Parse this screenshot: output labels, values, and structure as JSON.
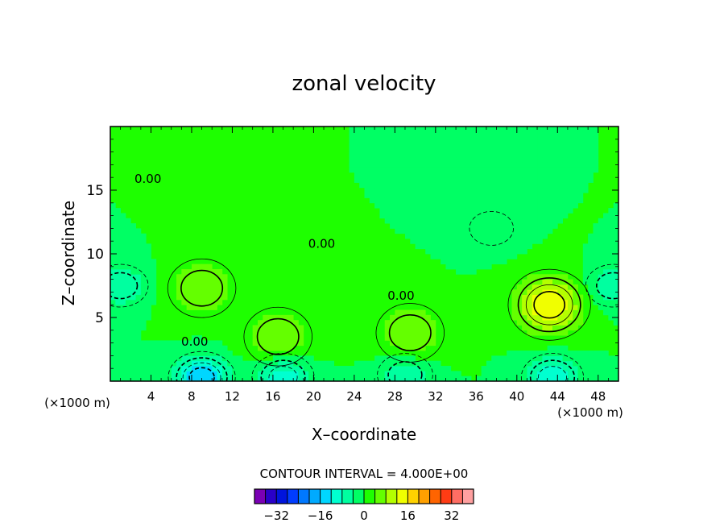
{
  "chart_data": {
    "type": "heatmap",
    "title": "zonal velocity",
    "xlabel": "X–coordinate",
    "ylabel": "Z–coordinate",
    "x_unit": "(×1000 m)",
    "z_unit": "(×1000 m)",
    "xlim": [
      0,
      50
    ],
    "ylim": [
      0,
      20
    ],
    "x_ticks": [
      4,
      8,
      12,
      16,
      20,
      24,
      28,
      32,
      36,
      40,
      44,
      48
    ],
    "y_ticks": [
      5,
      10,
      15
    ],
    "contour_interval_text": "CONTOUR INTERVAL = 4.000E+00",
    "contour_labels": [
      {
        "text": "0.00",
        "x": 3.7,
        "z": 15.9
      },
      {
        "text": "0.00",
        "x": 20.8,
        "z": 10.8
      },
      {
        "text": "0.00",
        "x": 28.6,
        "z": 6.7
      },
      {
        "text": "0.00",
        "x": 8.3,
        "z": 3.1
      }
    ],
    "features": [
      {
        "name": "max",
        "x": 43.2,
        "z": 6.0,
        "value": 16
      },
      {
        "name": "max",
        "x": 9.0,
        "z": 7.3,
        "value": 8
      },
      {
        "name": "max",
        "x": 29.5,
        "z": 3.8,
        "value": 8
      },
      {
        "name": "max",
        "x": 16.5,
        "z": 3.5,
        "value": 8
      },
      {
        "name": "min",
        "x": 37.5,
        "z": 12.0,
        "value": -4
      },
      {
        "name": "min",
        "x": 1.0,
        "z": 7.5,
        "value": -8
      },
      {
        "name": "min",
        "x": 9.0,
        "z": 0.3,
        "value": -16
      },
      {
        "name": "min",
        "x": 17.0,
        "z": 0.3,
        "value": -12
      },
      {
        "name": "min",
        "x": 43.5,
        "z": 0.3,
        "value": -12
      },
      {
        "name": "min",
        "x": 29.0,
        "z": 0.5,
        "value": -8
      },
      {
        "name": "min",
        "x": 49.5,
        "z": 7.5,
        "value": -8
      }
    ],
    "colorbar": {
      "levels": [
        -36,
        -32,
        -28,
        -24,
        -20,
        -16,
        -12,
        -8,
        -4,
        0,
        4,
        8,
        12,
        16,
        20,
        24,
        28,
        32,
        36
      ],
      "colors": [
        "#7a00b4",
        "#2a00c8",
        "#0014dc",
        "#003cff",
        "#0078ff",
        "#00aaff",
        "#00d6ff",
        "#00ffd0",
        "#00ffa0",
        "#00ff64",
        "#1eff00",
        "#64ff00",
        "#b4ff00",
        "#f0ff00",
        "#ffd200",
        "#ffa000",
        "#ff6400",
        "#ff3c14",
        "#ff6e64",
        "#ffa0a0"
      ],
      "tick_labels": [
        "−32",
        "−16",
        "0",
        "16",
        "32"
      ],
      "tick_values": [
        -32,
        -16,
        0,
        16,
        32
      ]
    }
  }
}
